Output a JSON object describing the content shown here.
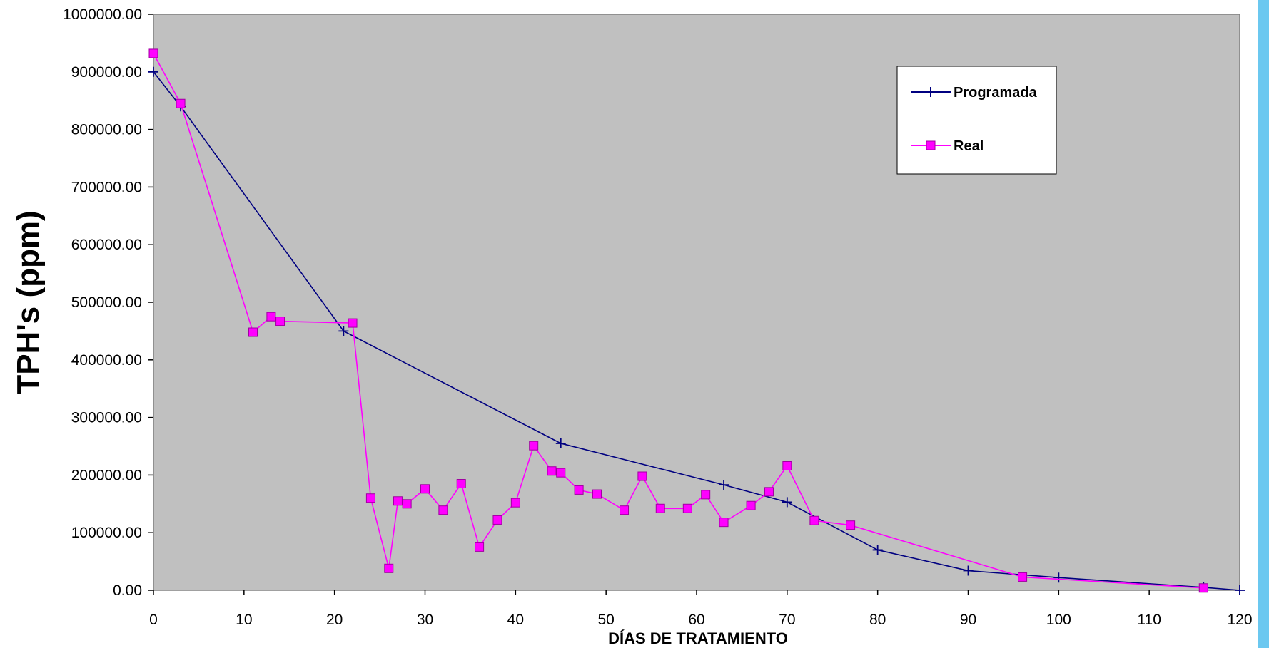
{
  "chart_data": {
    "type": "line",
    "title": "",
    "xlabel": "DÍAS DE TRATAMIENTO",
    "ylabel": "TPH's  (ppm)",
    "xlim": [
      0,
      120
    ],
    "ylim": [
      0,
      1000000
    ],
    "x_ticks": [
      "0",
      "10",
      "20",
      "30",
      "40",
      "50",
      "60",
      "70",
      "80",
      "90",
      "100",
      "110",
      "120"
    ],
    "y_ticks": [
      "0.00",
      "100000.00",
      "200000.00",
      "300000.00",
      "400000.00",
      "500000.00",
      "600000.00",
      "700000.00",
      "800000.00",
      "900000.00",
      "1000000.00"
    ],
    "grid": false,
    "legend_position": "top-right",
    "plot_background": "#c0c0c0",
    "series": [
      {
        "name": "Programada",
        "color": "#000080",
        "marker": "plus",
        "points": [
          [
            0,
            900000
          ],
          [
            3,
            840000
          ],
          [
            21,
            450000
          ],
          [
            45,
            255000
          ],
          [
            63,
            183000
          ],
          [
            70,
            153000
          ],
          [
            80,
            70000
          ],
          [
            90,
            34000
          ],
          [
            100,
            22000
          ],
          [
            116,
            5000
          ],
          [
            120,
            0
          ]
        ]
      },
      {
        "name": "Real",
        "color": "#ff00ff",
        "marker": "square",
        "points": [
          [
            0,
            932000
          ],
          [
            3,
            845000
          ],
          [
            11,
            448000
          ],
          [
            13,
            475000
          ],
          [
            14,
            467000
          ],
          [
            22,
            464000
          ],
          [
            24,
            160000
          ],
          [
            26,
            38000
          ],
          [
            27,
            155000
          ],
          [
            28,
            150000
          ],
          [
            30,
            176000
          ],
          [
            32,
            139000
          ],
          [
            34,
            185000
          ],
          [
            36,
            75000
          ],
          [
            38,
            122000
          ],
          [
            40,
            152000
          ],
          [
            42,
            251000
          ],
          [
            44,
            207000
          ],
          [
            45,
            204000
          ],
          [
            47,
            174000
          ],
          [
            49,
            167000
          ],
          [
            52,
            139000
          ],
          [
            54,
            198000
          ],
          [
            56,
            142000
          ],
          [
            59,
            142000
          ],
          [
            61,
            166000
          ],
          [
            63,
            118000
          ],
          [
            66,
            147000
          ],
          [
            68,
            171000
          ],
          [
            70,
            216000
          ],
          [
            73,
            121000
          ],
          [
            77,
            113000
          ],
          [
            96,
            23000
          ],
          [
            116,
            4000
          ]
        ]
      }
    ]
  }
}
